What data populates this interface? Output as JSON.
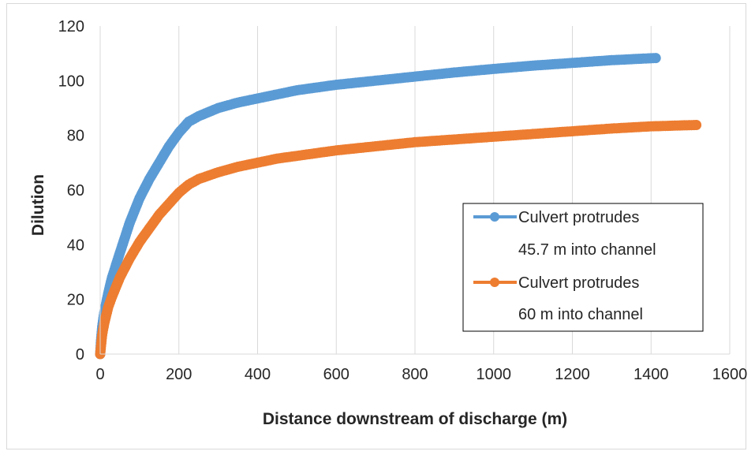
{
  "chart_data": {
    "type": "line",
    "title": "",
    "xlabel": "Distance downstream of discharge (m)",
    "ylabel": "Dilution",
    "xlim": [
      0,
      1600
    ],
    "ylim": [
      0,
      120
    ],
    "xticks": [
      "0",
      "200",
      "400",
      "600",
      "800",
      "1000",
      "1200",
      "1400",
      "1600"
    ],
    "yticks": [
      "0",
      "20",
      "40",
      "60",
      "80",
      "100",
      "120"
    ],
    "grid": "vertical",
    "legend": "center-right",
    "series": [
      {
        "name_line1": "Culvert protrudes",
        "name_line2": "45.7 m into channel",
        "color": "#5b9bd5",
        "x": [
          0,
          2,
          5,
          10,
          20,
          30,
          50,
          75,
          100,
          125,
          150,
          175,
          200,
          225,
          250,
          300,
          350,
          400,
          450,
          500,
          600,
          700,
          800,
          900,
          1000,
          1100,
          1200,
          1300,
          1412
        ],
        "y": [
          0,
          5,
          10,
          15,
          22,
          28,
          37,
          48,
          57,
          64,
          70,
          76,
          81,
          85,
          87,
          90,
          92,
          93.5,
          95,
          96.5,
          98.5,
          100,
          101.5,
          103,
          104.3,
          105.5,
          106.5,
          107.5,
          108.3
        ]
      },
      {
        "name_line1": "Culvert protrudes",
        "name_line2": "60 m into channel",
        "color": "#ed7d31",
        "x": [
          0,
          2,
          5,
          10,
          20,
          30,
          50,
          75,
          100,
          125,
          150,
          175,
          200,
          225,
          250,
          300,
          350,
          400,
          450,
          500,
          600,
          700,
          800,
          900,
          1000,
          1100,
          1200,
          1300,
          1400,
          1515
        ],
        "y": [
          0,
          3,
          7,
          11,
          17,
          21,
          28,
          35,
          41,
          46,
          51,
          55,
          59,
          62,
          64,
          66.5,
          68.5,
          70,
          71.5,
          72.5,
          74.5,
          76,
          77.5,
          78.5,
          79.5,
          80.5,
          81.5,
          82.5,
          83.3,
          83.8
        ]
      }
    ]
  }
}
